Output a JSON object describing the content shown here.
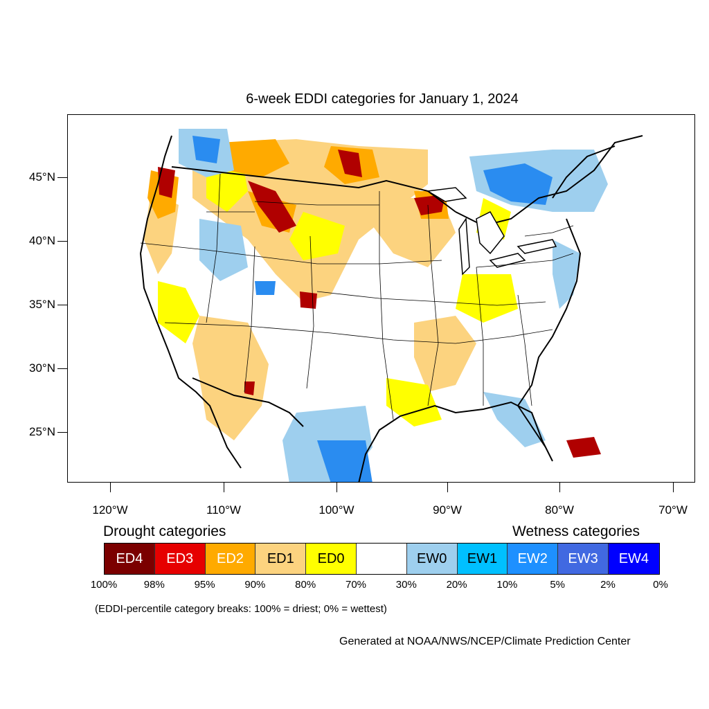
{
  "title": "6-week EDDI categories for January 1, 2024",
  "lat_labels": [
    "45°N",
    "40°N",
    "35°N",
    "30°N",
    "25°N"
  ],
  "lon_labels": [
    "120°W",
    "110°W",
    "100°W",
    "90°W",
    "80°W",
    "70°W"
  ],
  "legend": {
    "drought_heading": "Drought categories",
    "wetness_heading": "Wetness categories",
    "categories": [
      {
        "label": "ED4",
        "color": "#7b0000",
        "text_color": "#ffffff"
      },
      {
        "label": "ED3",
        "color": "#e60000",
        "text_color": "#ffffff"
      },
      {
        "label": "ED2",
        "color": "#ffaa00",
        "text_color": "#ffffff"
      },
      {
        "label": "ED1",
        "color": "#fcd37f",
        "text_color": "#000000"
      },
      {
        "label": "ED0",
        "color": "#ffff00",
        "text_color": "#000000"
      },
      {
        "label": "",
        "color": "#ffffff",
        "text_color": "#000000"
      },
      {
        "label": "EW0",
        "color": "#9ecfee",
        "text_color": "#000000"
      },
      {
        "label": "EW1",
        "color": "#00c0ff",
        "text_color": "#000000"
      },
      {
        "label": "EW2",
        "color": "#1e90ff",
        "text_color": "#ffffff"
      },
      {
        "label": "EW3",
        "color": "#4169e1",
        "text_color": "#ffffff"
      },
      {
        "label": "EW4",
        "color": "#0000ff",
        "text_color": "#ffffff"
      }
    ],
    "breaks": [
      "100%",
      "98%",
      "95%",
      "90%",
      "80%",
      "70%",
      "30%",
      "20%",
      "10%",
      "5%",
      "2%",
      "0%"
    ]
  },
  "note": "(EDDI-percentile category breaks: 100% = driest; 0% = wettest)",
  "credit": "Generated at NOAA/NWS/NCEP/Climate Prediction Center"
}
